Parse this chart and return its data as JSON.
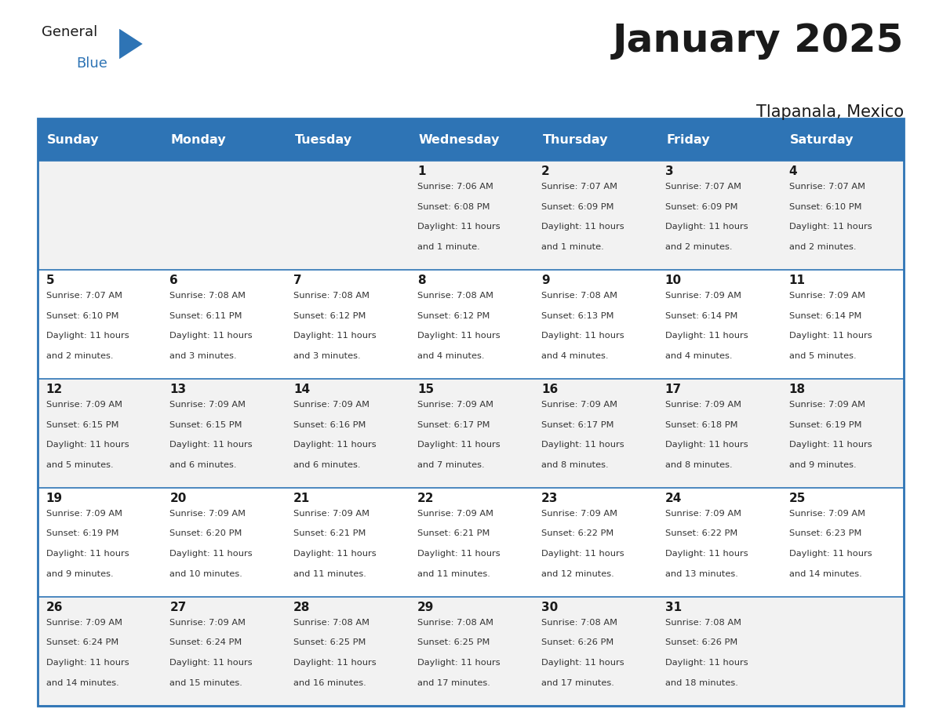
{
  "title": "January 2025",
  "subtitle": "Tlapanala, Mexico",
  "header_bg_color": "#2E74B5",
  "header_text_color": "#FFFFFF",
  "cell_bg_row0": "#F2F2F2",
  "cell_bg_row1": "#FFFFFF",
  "cell_bg_row2": "#F2F2F2",
  "cell_bg_row3": "#FFFFFF",
  "cell_bg_row4": "#F2F2F2",
  "border_color": "#2E74B5",
  "day_names": [
    "Sunday",
    "Monday",
    "Tuesday",
    "Wednesday",
    "Thursday",
    "Friday",
    "Saturday"
  ],
  "days": [
    {
      "day": 1,
      "col": 3,
      "row": 0,
      "sunrise": "7:06 AM",
      "sunset": "6:08 PM",
      "daylight_l1": "Daylight: 11 hours",
      "daylight_l2": "and 1 minute."
    },
    {
      "day": 2,
      "col": 4,
      "row": 0,
      "sunrise": "7:07 AM",
      "sunset": "6:09 PM",
      "daylight_l1": "Daylight: 11 hours",
      "daylight_l2": "and 1 minute."
    },
    {
      "day": 3,
      "col": 5,
      "row": 0,
      "sunrise": "7:07 AM",
      "sunset": "6:09 PM",
      "daylight_l1": "Daylight: 11 hours",
      "daylight_l2": "and 2 minutes."
    },
    {
      "day": 4,
      "col": 6,
      "row": 0,
      "sunrise": "7:07 AM",
      "sunset": "6:10 PM",
      "daylight_l1": "Daylight: 11 hours",
      "daylight_l2": "and 2 minutes."
    },
    {
      "day": 5,
      "col": 0,
      "row": 1,
      "sunrise": "7:07 AM",
      "sunset": "6:10 PM",
      "daylight_l1": "Daylight: 11 hours",
      "daylight_l2": "and 2 minutes."
    },
    {
      "day": 6,
      "col": 1,
      "row": 1,
      "sunrise": "7:08 AM",
      "sunset": "6:11 PM",
      "daylight_l1": "Daylight: 11 hours",
      "daylight_l2": "and 3 minutes."
    },
    {
      "day": 7,
      "col": 2,
      "row": 1,
      "sunrise": "7:08 AM",
      "sunset": "6:12 PM",
      "daylight_l1": "Daylight: 11 hours",
      "daylight_l2": "and 3 minutes."
    },
    {
      "day": 8,
      "col": 3,
      "row": 1,
      "sunrise": "7:08 AM",
      "sunset": "6:12 PM",
      "daylight_l1": "Daylight: 11 hours",
      "daylight_l2": "and 4 minutes."
    },
    {
      "day": 9,
      "col": 4,
      "row": 1,
      "sunrise": "7:08 AM",
      "sunset": "6:13 PM",
      "daylight_l1": "Daylight: 11 hours",
      "daylight_l2": "and 4 minutes."
    },
    {
      "day": 10,
      "col": 5,
      "row": 1,
      "sunrise": "7:09 AM",
      "sunset": "6:14 PM",
      "daylight_l1": "Daylight: 11 hours",
      "daylight_l2": "and 4 minutes."
    },
    {
      "day": 11,
      "col": 6,
      "row": 1,
      "sunrise": "7:09 AM",
      "sunset": "6:14 PM",
      "daylight_l1": "Daylight: 11 hours",
      "daylight_l2": "and 5 minutes."
    },
    {
      "day": 12,
      "col": 0,
      "row": 2,
      "sunrise": "7:09 AM",
      "sunset": "6:15 PM",
      "daylight_l1": "Daylight: 11 hours",
      "daylight_l2": "and 5 minutes."
    },
    {
      "day": 13,
      "col": 1,
      "row": 2,
      "sunrise": "7:09 AM",
      "sunset": "6:15 PM",
      "daylight_l1": "Daylight: 11 hours",
      "daylight_l2": "and 6 minutes."
    },
    {
      "day": 14,
      "col": 2,
      "row": 2,
      "sunrise": "7:09 AM",
      "sunset": "6:16 PM",
      "daylight_l1": "Daylight: 11 hours",
      "daylight_l2": "and 6 minutes."
    },
    {
      "day": 15,
      "col": 3,
      "row": 2,
      "sunrise": "7:09 AM",
      "sunset": "6:17 PM",
      "daylight_l1": "Daylight: 11 hours",
      "daylight_l2": "and 7 minutes."
    },
    {
      "day": 16,
      "col": 4,
      "row": 2,
      "sunrise": "7:09 AM",
      "sunset": "6:17 PM",
      "daylight_l1": "Daylight: 11 hours",
      "daylight_l2": "and 8 minutes."
    },
    {
      "day": 17,
      "col": 5,
      "row": 2,
      "sunrise": "7:09 AM",
      "sunset": "6:18 PM",
      "daylight_l1": "Daylight: 11 hours",
      "daylight_l2": "and 8 minutes."
    },
    {
      "day": 18,
      "col": 6,
      "row": 2,
      "sunrise": "7:09 AM",
      "sunset": "6:19 PM",
      "daylight_l1": "Daylight: 11 hours",
      "daylight_l2": "and 9 minutes."
    },
    {
      "day": 19,
      "col": 0,
      "row": 3,
      "sunrise": "7:09 AM",
      "sunset": "6:19 PM",
      "daylight_l1": "Daylight: 11 hours",
      "daylight_l2": "and 9 minutes."
    },
    {
      "day": 20,
      "col": 1,
      "row": 3,
      "sunrise": "7:09 AM",
      "sunset": "6:20 PM",
      "daylight_l1": "Daylight: 11 hours",
      "daylight_l2": "and 10 minutes."
    },
    {
      "day": 21,
      "col": 2,
      "row": 3,
      "sunrise": "7:09 AM",
      "sunset": "6:21 PM",
      "daylight_l1": "Daylight: 11 hours",
      "daylight_l2": "and 11 minutes."
    },
    {
      "day": 22,
      "col": 3,
      "row": 3,
      "sunrise": "7:09 AM",
      "sunset": "6:21 PM",
      "daylight_l1": "Daylight: 11 hours",
      "daylight_l2": "and 11 minutes."
    },
    {
      "day": 23,
      "col": 4,
      "row": 3,
      "sunrise": "7:09 AM",
      "sunset": "6:22 PM",
      "daylight_l1": "Daylight: 11 hours",
      "daylight_l2": "and 12 minutes."
    },
    {
      "day": 24,
      "col": 5,
      "row": 3,
      "sunrise": "7:09 AM",
      "sunset": "6:22 PM",
      "daylight_l1": "Daylight: 11 hours",
      "daylight_l2": "and 13 minutes."
    },
    {
      "day": 25,
      "col": 6,
      "row": 3,
      "sunrise": "7:09 AM",
      "sunset": "6:23 PM",
      "daylight_l1": "Daylight: 11 hours",
      "daylight_l2": "and 14 minutes."
    },
    {
      "day": 26,
      "col": 0,
      "row": 4,
      "sunrise": "7:09 AM",
      "sunset": "6:24 PM",
      "daylight_l1": "Daylight: 11 hours",
      "daylight_l2": "and 14 minutes."
    },
    {
      "day": 27,
      "col": 1,
      "row": 4,
      "sunrise": "7:09 AM",
      "sunset": "6:24 PM",
      "daylight_l1": "Daylight: 11 hours",
      "daylight_l2": "and 15 minutes."
    },
    {
      "day": 28,
      "col": 2,
      "row": 4,
      "sunrise": "7:08 AM",
      "sunset": "6:25 PM",
      "daylight_l1": "Daylight: 11 hours",
      "daylight_l2": "and 16 minutes."
    },
    {
      "day": 29,
      "col": 3,
      "row": 4,
      "sunrise": "7:08 AM",
      "sunset": "6:25 PM",
      "daylight_l1": "Daylight: 11 hours",
      "daylight_l2": "and 17 minutes."
    },
    {
      "day": 30,
      "col": 4,
      "row": 4,
      "sunrise": "7:08 AM",
      "sunset": "6:26 PM",
      "daylight_l1": "Daylight: 11 hours",
      "daylight_l2": "and 17 minutes."
    },
    {
      "day": 31,
      "col": 5,
      "row": 4,
      "sunrise": "7:08 AM",
      "sunset": "6:26 PM",
      "daylight_l1": "Daylight: 11 hours",
      "daylight_l2": "and 18 minutes."
    }
  ],
  "text_color_dark": "#1a1a1a",
  "text_color_info": "#333333",
  "logo_color_general": "#1a1a1a",
  "logo_color_blue": "#2E74B5",
  "title_fontsize": 36,
  "subtitle_fontsize": 15,
  "header_fontsize": 11.5,
  "day_num_fontsize": 11,
  "info_fontsize": 8.2,
  "fig_width": 11.88,
  "fig_height": 9.18,
  "dpi": 100
}
